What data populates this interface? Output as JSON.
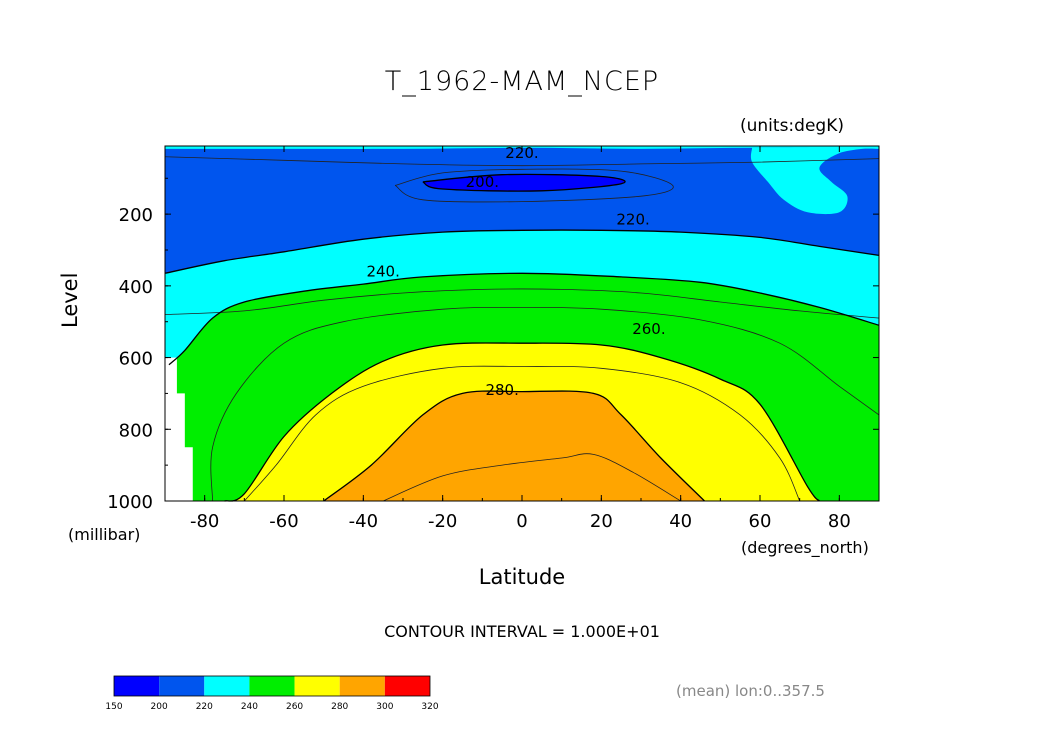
{
  "chart_data": {
    "type": "heatmap",
    "subtype": "filled-contour",
    "title": "T_1962-MAM_NCEP",
    "units_label": "(units:degK)",
    "xlabel": "Latitude",
    "x_units_label": "(degrees_north)",
    "ylabel": "Level",
    "y_units_label": "(millibar)",
    "xlim": [
      -90,
      90
    ],
    "ylim": [
      1000,
      10
    ],
    "x_ticks": [
      "-80",
      "-60",
      "-40",
      "-20",
      "0",
      "20",
      "40",
      "60",
      "80"
    ],
    "x_tick_values": [
      -80,
      -60,
      -40,
      -20,
      0,
      20,
      40,
      60,
      80
    ],
    "y_ticks": [
      "200",
      "400",
      "600",
      "800",
      "1000"
    ],
    "y_tick_values": [
      200,
      400,
      600,
      800,
      1000
    ],
    "contour_labels": [
      {
        "text": "220.",
        "lat": 0,
        "lev": 30
      },
      {
        "text": "200.",
        "lat": -10,
        "lev": 110
      },
      {
        "text": "220.",
        "lat": 28,
        "lev": 215
      },
      {
        "text": "240.",
        "lat": -35,
        "lev": 360
      },
      {
        "text": "260.",
        "lat": 32,
        "lev": 520
      },
      {
        "text": "280.",
        "lat": -5,
        "lev": 690
      }
    ],
    "contour_interval_text": "CONTOUR INTERVAL = 1.000E+01",
    "colorbar": {
      "levels": [
        "150",
        "200",
        "220",
        "240",
        "260",
        "280",
        "300",
        "320"
      ],
      "colors": [
        "#0000ff",
        "#0055ee",
        "#00ffff",
        "#00ee00",
        "#ffff00",
        "#ffa500",
        "#ff0000"
      ]
    },
    "regions": [
      {
        "color_bin": "220-240",
        "top": [
          [
            -90,
            18
          ],
          [
            -60,
            18
          ],
          [
            -30,
            18
          ],
          [
            0,
            15
          ],
          [
            30,
            18
          ],
          [
            60,
            15
          ],
          [
            90,
            18
          ]
        ]
      },
      {
        "color_bin": "200-220",
        "boundary": "lower edge",
        "points": [
          [
            -90,
            365
          ],
          [
            -75,
            330
          ],
          [
            -60,
            305
          ],
          [
            -40,
            270
          ],
          [
            -20,
            250
          ],
          [
            0,
            245
          ],
          [
            20,
            245
          ],
          [
            40,
            250
          ],
          [
            60,
            265
          ],
          [
            75,
            290
          ],
          [
            90,
            315
          ]
        ]
      },
      {
        "color_bin": "240-260",
        "boundary": "lower edge",
        "points": [
          [
            -89,
            620
          ],
          [
            -85,
            580
          ],
          [
            -78,
            490
          ],
          [
            -70,
            445
          ],
          [
            -55,
            415
          ],
          [
            -40,
            395
          ],
          [
            -25,
            375
          ],
          [
            0,
            365
          ],
          [
            25,
            375
          ],
          [
            45,
            390
          ],
          [
            60,
            420
          ],
          [
            75,
            460
          ],
          [
            90,
            510
          ]
        ]
      },
      {
        "color_bin": "260-280",
        "boundary": "lower edge",
        "points": [
          [
            -75,
            1000
          ],
          [
            -70,
            980
          ],
          [
            -60,
            820
          ],
          [
            -48,
            700
          ],
          [
            -35,
            610
          ],
          [
            -20,
            565
          ],
          [
            0,
            560
          ],
          [
            20,
            565
          ],
          [
            35,
            600
          ],
          [
            50,
            660
          ],
          [
            60,
            730
          ],
          [
            72,
            960
          ],
          [
            75,
            1000
          ]
        ]
      },
      {
        "color_bin": "280-300",
        "boundary": "lower edge",
        "points": [
          [
            -50,
            1000
          ],
          [
            -38,
            900
          ],
          [
            -25,
            760
          ],
          [
            -15,
            700
          ],
          [
            0,
            695
          ],
          [
            18,
            700
          ],
          [
            25,
            760
          ],
          [
            35,
            880
          ],
          [
            46,
            1000
          ]
        ]
      },
      {
        "color_bin": "190-200",
        "region": "core",
        "points": [
          [
            -25,
            110
          ],
          [
            -5,
            90
          ],
          [
            20,
            95
          ],
          [
            25,
            115
          ],
          [
            5,
            135
          ],
          [
            -20,
            130
          ]
        ]
      }
    ],
    "grid": false,
    "annotation": "(mean) lon:0..357.5"
  }
}
